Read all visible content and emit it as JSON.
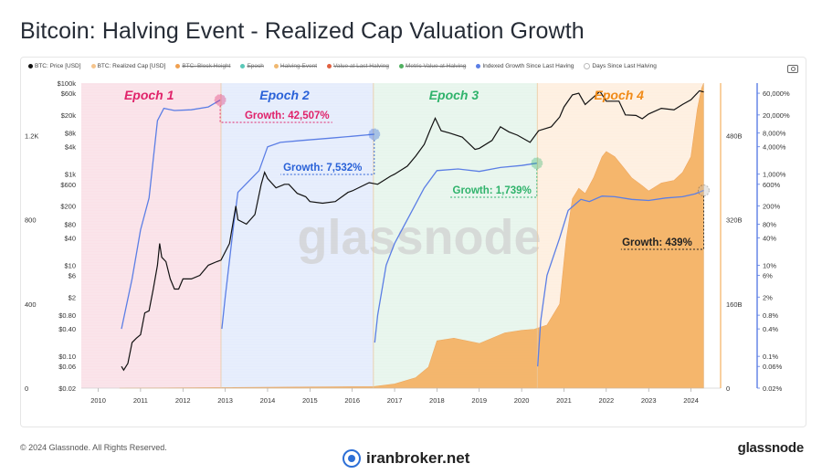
{
  "title": "Bitcoin: Halving Event - Realized Cap Valuation Growth",
  "footer": {
    "copyright": "© 2024 Glassnode. All Rights Reserved.",
    "brand": "glassnode",
    "site": "iranbroker.net"
  },
  "watermark": "glassnode",
  "icons": {
    "camera": "camera-icon",
    "site_logo": "iranbroker-logo-icon"
  },
  "colors": {
    "price": "#111111",
    "realized_cap": "#f5b060",
    "indexed_growth": "#5b7ee5",
    "epoch1": "#f8d7e0",
    "epoch2": "#dce6fb",
    "epoch3": "#dff2e6",
    "epoch4": "#fde9d6",
    "epoch1_label": "#e0236a",
    "epoch2_label": "#2a62d8",
    "epoch3_label": "#2fb36b",
    "epoch4_label": "#f08a17"
  },
  "chart_data": {
    "type": "line",
    "legend": [
      {
        "label": "BTC: Price [USD]",
        "color": "#111111",
        "active": true
      },
      {
        "label": "BTC: Realized Cap [USD]",
        "color": "#f5c48c",
        "active": true
      },
      {
        "label": "BTC: Block Height",
        "color": "#f0a050",
        "active": false
      },
      {
        "label": "Epoch",
        "color": "#5ac8b8",
        "active": false
      },
      {
        "label": "Halving Event",
        "color": "#f0b870",
        "active": false
      },
      {
        "label": "Value at Last Halving",
        "color": "#e06040",
        "active": false
      },
      {
        "label": "Metric Value at Halving",
        "color": "#50b060",
        "active": false
      },
      {
        "label": "Indexed Growth Since Last Having",
        "color": "#5b7ee5",
        "active": true
      },
      {
        "label": "Days Since Last Halving",
        "color": "#ffffff",
        "active": true
      }
    ],
    "x_ticks": [
      "2010",
      "2011",
      "2012",
      "2013",
      "2014",
      "2015",
      "2016",
      "2017",
      "2018",
      "2019",
      "2020",
      "2021",
      "2022",
      "2023",
      "2024"
    ],
    "x_range": [
      2009.6,
      2024.7
    ],
    "price_axis": {
      "ticks": [
        "$100k",
        "$60k",
        "$20k",
        "$8k",
        "$4k",
        "$1k",
        "$600",
        "$200",
        "$80",
        "$40",
        "$10",
        "$6",
        "$2",
        "$0.80",
        "$0.40",
        "$0.10",
        "$0.06",
        "$0.02"
      ],
      "values": [
        100000,
        60000,
        20000,
        8000,
        4000,
        1000,
        600,
        200,
        80,
        40,
        10,
        6,
        2,
        0.8,
        0.4,
        0.1,
        0.06,
        0.02
      ],
      "range": [
        0.02,
        100000
      ],
      "scale": "log"
    },
    "block_height_axis": {
      "ticks": [
        "1.2K",
        "800",
        "400",
        "0"
      ],
      "values": [
        1200,
        800,
        400,
        0
      ],
      "range": [
        0,
        1450
      ]
    },
    "realized_cap_axis": {
      "ticks": [
        "480B",
        "320B",
        "160B",
        "0"
      ],
      "values": [
        480,
        320,
        160,
        0
      ],
      "range": [
        0,
        580
      ]
    },
    "growth_axis": {
      "ticks": [
        "60,000%",
        "20,000%",
        "8,000%",
        "4,000%",
        "1,000%",
        "600%",
        "200%",
        "80%",
        "40%",
        "10%",
        "6%",
        "2%",
        "0.8%",
        "0.4%",
        "0.1%",
        "0.06%",
        "0.02%"
      ],
      "values": [
        60000,
        20000,
        8000,
        4000,
        1000,
        600,
        200,
        80,
        40,
        10,
        6,
        2,
        0.8,
        0.4,
        0.1,
        0.06,
        0.02
      ],
      "range": [
        0.02,
        100000
      ],
      "scale": "log"
    },
    "epochs": [
      {
        "label": "Epoch 1",
        "start": 2009.6,
        "end": 2012.9
      },
      {
        "label": "Epoch 2",
        "start": 2012.9,
        "end": 2016.5
      },
      {
        "label": "Epoch 3",
        "start": 2016.5,
        "end": 2020.37
      },
      {
        "label": "Epoch 4",
        "start": 2020.37,
        "end": 2024.3
      }
    ],
    "annotations": [
      {
        "text": "Growth: 42,507%",
        "epoch": 1,
        "x": 2012.88,
        "value": 42507
      },
      {
        "text": "Growth: 7,532%",
        "epoch": 2,
        "x": 2016.52,
        "value": 7532
      },
      {
        "text": "Growth: 1,739%",
        "epoch": 3,
        "x": 2020.36,
        "value": 1739
      },
      {
        "text": "Growth: 439%",
        "epoch": 4,
        "x": 2024.3,
        "value": 439
      }
    ],
    "series": [
      {
        "name": "BTC: Price [USD]",
        "axis": "price",
        "points": [
          [
            2010.55,
            0.06
          ],
          [
            2010.6,
            0.05
          ],
          [
            2010.7,
            0.07
          ],
          [
            2010.8,
            0.2
          ],
          [
            2010.9,
            0.25
          ],
          [
            2011.0,
            0.3
          ],
          [
            2011.1,
            0.9
          ],
          [
            2011.2,
            1
          ],
          [
            2011.3,
            3
          ],
          [
            2011.4,
            10
          ],
          [
            2011.45,
            30
          ],
          [
            2011.5,
            15
          ],
          [
            2011.6,
            12
          ],
          [
            2011.7,
            5
          ],
          [
            2011.8,
            3
          ],
          [
            2011.9,
            3
          ],
          [
            2012.0,
            5
          ],
          [
            2012.2,
            5
          ],
          [
            2012.4,
            6
          ],
          [
            2012.6,
            10
          ],
          [
            2012.8,
            12
          ],
          [
            2012.9,
            13
          ],
          [
            2013.1,
            30
          ],
          [
            2013.25,
            200
          ],
          [
            2013.3,
            100
          ],
          [
            2013.5,
            80
          ],
          [
            2013.7,
            130
          ],
          [
            2013.85,
            600
          ],
          [
            2013.93,
            1100
          ],
          [
            2014.0,
            800
          ],
          [
            2014.2,
            500
          ],
          [
            2014.4,
            600
          ],
          [
            2014.5,
            600
          ],
          [
            2014.7,
            380
          ],
          [
            2014.9,
            320
          ],
          [
            2015.0,
            250
          ],
          [
            2015.3,
            230
          ],
          [
            2015.6,
            250
          ],
          [
            2015.9,
            400
          ],
          [
            2016.0,
            430
          ],
          [
            2016.4,
            650
          ],
          [
            2016.6,
            600
          ],
          [
            2016.9,
            900
          ],
          [
            2017.0,
            1000
          ],
          [
            2017.3,
            1500
          ],
          [
            2017.5,
            2500
          ],
          [
            2017.7,
            4500
          ],
          [
            2017.85,
            10000
          ],
          [
            2017.96,
            17000
          ],
          [
            2018.1,
            9000
          ],
          [
            2018.3,
            8000
          ],
          [
            2018.6,
            6500
          ],
          [
            2018.9,
            3500
          ],
          [
            2019.0,
            3700
          ],
          [
            2019.3,
            5500
          ],
          [
            2019.5,
            11000
          ],
          [
            2019.7,
            8500
          ],
          [
            2019.9,
            7200
          ],
          [
            2020.2,
            5000
          ],
          [
            2020.4,
            9000
          ],
          [
            2020.7,
            11000
          ],
          [
            2020.9,
            18000
          ],
          [
            2021.0,
            30000
          ],
          [
            2021.2,
            55000
          ],
          [
            2021.35,
            60000
          ],
          [
            2021.5,
            34000
          ],
          [
            2021.65,
            45000
          ],
          [
            2021.85,
            66000
          ],
          [
            2022.0,
            40000
          ],
          [
            2022.3,
            40000
          ],
          [
            2022.45,
            20000
          ],
          [
            2022.7,
            19500
          ],
          [
            2022.85,
            16500
          ],
          [
            2023.0,
            21000
          ],
          [
            2023.3,
            28000
          ],
          [
            2023.6,
            26000
          ],
          [
            2023.8,
            34000
          ],
          [
            2024.0,
            43000
          ],
          [
            2024.2,
            68000
          ],
          [
            2024.3,
            64000
          ]
        ]
      },
      {
        "name": "BTC: Realized Cap [USD]",
        "axis": "realized_cap",
        "unit": "B",
        "points": [
          [
            2010.5,
            0
          ],
          [
            2016.5,
            3
          ],
          [
            2017.0,
            8
          ],
          [
            2017.5,
            20
          ],
          [
            2017.8,
            40
          ],
          [
            2018.0,
            90
          ],
          [
            2018.4,
            95
          ],
          [
            2019.0,
            85
          ],
          [
            2019.6,
            105
          ],
          [
            2020.0,
            110
          ],
          [
            2020.3,
            112
          ],
          [
            2020.6,
            120
          ],
          [
            2020.9,
            160
          ],
          [
            2021.05,
            280
          ],
          [
            2021.2,
            360
          ],
          [
            2021.35,
            380
          ],
          [
            2021.5,
            370
          ],
          [
            2021.7,
            400
          ],
          [
            2021.9,
            440
          ],
          [
            2022.0,
            450
          ],
          [
            2022.2,
            440
          ],
          [
            2022.4,
            420
          ],
          [
            2022.6,
            400
          ],
          [
            2022.85,
            385
          ],
          [
            2023.0,
            375
          ],
          [
            2023.3,
            390
          ],
          [
            2023.6,
            395
          ],
          [
            2023.8,
            410
          ],
          [
            2024.0,
            440
          ],
          [
            2024.15,
            530
          ],
          [
            2024.25,
            570
          ],
          [
            2024.3,
            580
          ]
        ]
      },
      {
        "name": "Indexed Growth Since Last Having",
        "axis": "growth",
        "segments": [
          [
            [
              2010.55,
              0.4
            ],
            [
              2010.8,
              5
            ],
            [
              2011.0,
              60
            ],
            [
              2011.2,
              300
            ],
            [
              2011.4,
              15000
            ],
            [
              2011.55,
              28000
            ],
            [
              2011.8,
              25000
            ],
            [
              2012.2,
              26000
            ],
            [
              2012.6,
              30000
            ],
            [
              2012.88,
              42507
            ]
          ],
          [
            [
              2012.92,
              0.4
            ],
            [
              2013.0,
              2
            ],
            [
              2013.2,
              80
            ],
            [
              2013.3,
              400
            ],
            [
              2013.8,
              1200
            ],
            [
              2014.0,
              4000
            ],
            [
              2014.3,
              5000
            ],
            [
              2014.8,
              5500
            ],
            [
              2015.5,
              6200
            ],
            [
              2016.0,
              6800
            ],
            [
              2016.52,
              7532
            ]
          ],
          [
            [
              2016.53,
              0.2
            ],
            [
              2016.6,
              0.8
            ],
            [
              2016.8,
              10
            ],
            [
              2017.0,
              30
            ],
            [
              2017.4,
              150
            ],
            [
              2017.7,
              500
            ],
            [
              2018.0,
              1200
            ],
            [
              2018.5,
              1300
            ],
            [
              2019.0,
              1150
            ],
            [
              2019.5,
              1400
            ],
            [
              2020.0,
              1550
            ],
            [
              2020.36,
              1739
            ]
          ],
          [
            [
              2020.38,
              0.06
            ],
            [
              2020.45,
              0.6
            ],
            [
              2020.6,
              6
            ],
            [
              2020.9,
              40
            ],
            [
              2021.1,
              160
            ],
            [
              2021.4,
              280
            ],
            [
              2021.6,
              250
            ],
            [
              2021.9,
              330
            ],
            [
              2022.2,
              320
            ],
            [
              2022.6,
              280
            ],
            [
              2023.0,
              265
            ],
            [
              2023.4,
              300
            ],
            [
              2023.8,
              320
            ],
            [
              2024.1,
              370
            ],
            [
              2024.3,
              439
            ]
          ]
        ]
      }
    ]
  }
}
